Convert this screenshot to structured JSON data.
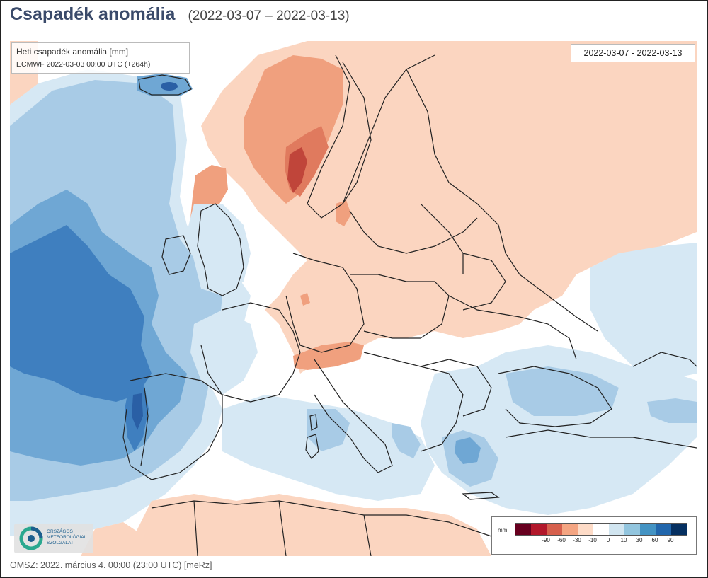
{
  "header": {
    "title": "Csapadék anomália",
    "date_range": "(2022-03-07 – 2022-03-13)"
  },
  "info_box": {
    "line1": "Heti csapadék anomália [mm]",
    "line2": "ECMWF 2022-03-03 00:00 UTC  (+264h)"
  },
  "date_box": {
    "label": "2022-03-07 - 2022-03-13"
  },
  "logo": {
    "line1": "ORSZÁGOS",
    "line2": "METEOROLÓGIAI",
    "line3": "SZOLGÁLAT"
  },
  "legend": {
    "unit": "mm",
    "swatch_colors": [
      "#67001f",
      "#b2182b",
      "#d6604d",
      "#f4a582",
      "#fddbc7",
      "#ffffff",
      "#d1e5f0",
      "#92c5de",
      "#4393c3",
      "#2166ac",
      "#053061"
    ],
    "tick_labels": [
      "-90",
      "-60",
      "-30",
      "-10",
      "0",
      "10",
      "30",
      "60",
      "90"
    ]
  },
  "colors": {
    "dry_light": "#fbd5c0",
    "dry_medium": "#f0a07e",
    "dry_strong": "#e07a5e",
    "dry_extreme": "#c0453a",
    "wet_light": "#d6e8f4",
    "wet_medium": "#a8cbe6",
    "wet_strong": "#6fa7d4",
    "wet_deep": "#3f7fbf",
    "wet_extreme": "#2a5fa5",
    "border": "#222222"
  },
  "footer": {
    "text": "OMSZ: 2022. március 4. 00:00 (23:00  UTC)  [meRz]"
  }
}
